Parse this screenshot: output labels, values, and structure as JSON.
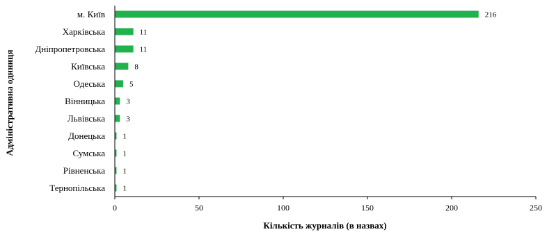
{
  "chart_data": {
    "type": "bar",
    "orientation": "horizontal",
    "categories": [
      "м. Київ",
      "Харківська",
      "Дніпропетровська",
      "Київська",
      "Одеська",
      "Вінницька",
      "Львівська",
      "Донецька",
      "Сумська",
      "Рівненська",
      "Тернопільська"
    ],
    "values": [
      216,
      11,
      11,
      8,
      5,
      3,
      3,
      1,
      1,
      1,
      1
    ],
    "xlabel": "Кількість журналів (в назвах)",
    "ylabel": "Адміністративна одиниця",
    "xlim": [
      0,
      250
    ],
    "xticks": [
      0,
      50,
      100,
      150,
      200,
      250
    ],
    "grid": false,
    "bar_color": "#22b14c"
  }
}
